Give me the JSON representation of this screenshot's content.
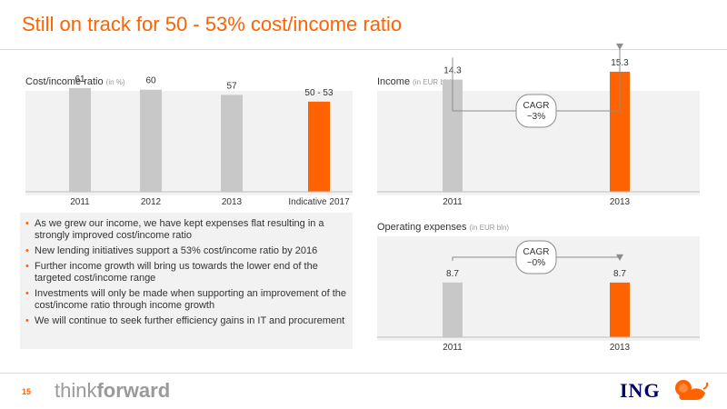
{
  "slide": {
    "title": "Still on track for 50 - 53% cost/income ratio",
    "page_number": "15",
    "tagline_light": "think",
    "tagline_bold": "forward",
    "logo_text": "ING",
    "logo_icon": "lion-icon"
  },
  "colors": {
    "accent": "#ff6200",
    "bar_gray": "#c8c8c8",
    "panel_bg": "#f2f2f2",
    "logo_blue": "#000066"
  },
  "bullets": [
    "As we grew our income, we have kept expenses flat resulting in a strongly improved cost/income ratio",
    "New lending initiatives support a 53% cost/income ratio by 2016",
    "Further income growth will bring us towards the lower end of the targeted cost/income range",
    "Investments will only be made when supporting an improvement of the cost/income ratio through income growth",
    "We will continue to seek further efficiency gains in IT and procurement"
  ],
  "chart_data": [
    {
      "type": "bar",
      "title": "Cost/income ratio",
      "unit": "(in %)",
      "categories": [
        "2011",
        "2012",
        "2013",
        "Indicative 2017"
      ],
      "values": [
        61,
        60,
        57,
        53
      ],
      "range_low": 50,
      "data_labels": [
        "61",
        "60",
        "57",
        "50 - 53"
      ],
      "highlight_index": 3,
      "ylim": [
        0,
        70
      ],
      "grid": false,
      "legend": "none"
    },
    {
      "type": "bar",
      "title": "Income",
      "unit": "(in EUR bln)",
      "categories": [
        "2011",
        "2013"
      ],
      "values": [
        14.3,
        15.3
      ],
      "data_labels": [
        "14.3",
        "15.3"
      ],
      "highlight_index": 1,
      "annotation": "CAGR\n~3%",
      "ylim": [
        0,
        30
      ],
      "grid": false,
      "legend": "none"
    },
    {
      "type": "bar",
      "title": "Operating expenses",
      "unit": "(in EUR bln)",
      "categories": [
        "2011",
        "2013"
      ],
      "values": [
        8.7,
        8.7
      ],
      "data_labels": [
        "8.7",
        "8.7"
      ],
      "highlight_index": 1,
      "annotation": "CAGR\n~0%",
      "ylim": [
        0,
        16.2
      ],
      "grid": false,
      "legend": "none"
    }
  ]
}
